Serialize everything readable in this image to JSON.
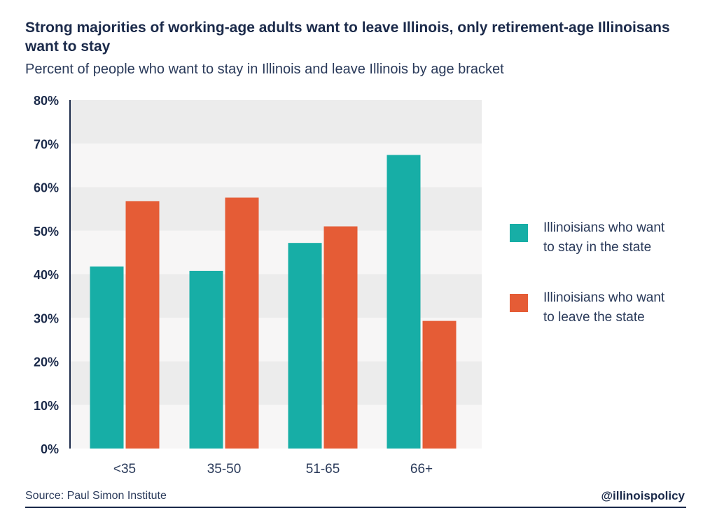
{
  "header": {
    "title": "Strong majorities of working-age adults want to leave Illinois, only retirement-age Illinoisans want to stay",
    "subtitle": "Percent of people who want to stay in Illinois and leave Illinois by age bracket"
  },
  "footer": {
    "source": "Source: Paul Simon Institute",
    "handle": "@illinoispolicy"
  },
  "colors": {
    "stay": "#17aea6",
    "leave": "#e55c36",
    "band_light": "#f7f6f6",
    "band_dark": "#ececec",
    "axis": "#1b2a4a"
  },
  "chart_data": {
    "type": "bar",
    "categories": [
      "<35",
      "35-50",
      "51-65",
      "66+"
    ],
    "series": [
      {
        "name": "Illinoisians who want to stay in the state",
        "values": [
          41.8,
          40.8,
          47.2,
          67.4
        ]
      },
      {
        "name": "Illinoisians who want to leave the state",
        "values": [
          56.8,
          57.6,
          51.0,
          29.3
        ]
      }
    ],
    "yticks": [
      "0%",
      "10%",
      "20%",
      "30%",
      "40%",
      "50%",
      "60%",
      "70%",
      "80%"
    ],
    "ylim": [
      0,
      80
    ],
    "grid": true,
    "legend_position": "right"
  },
  "legend": [
    {
      "line1": "Illinoisians who want",
      "line2": "to stay in the state"
    },
    {
      "line1": "Illinoisians who want",
      "line2": "to leave the state"
    }
  ]
}
